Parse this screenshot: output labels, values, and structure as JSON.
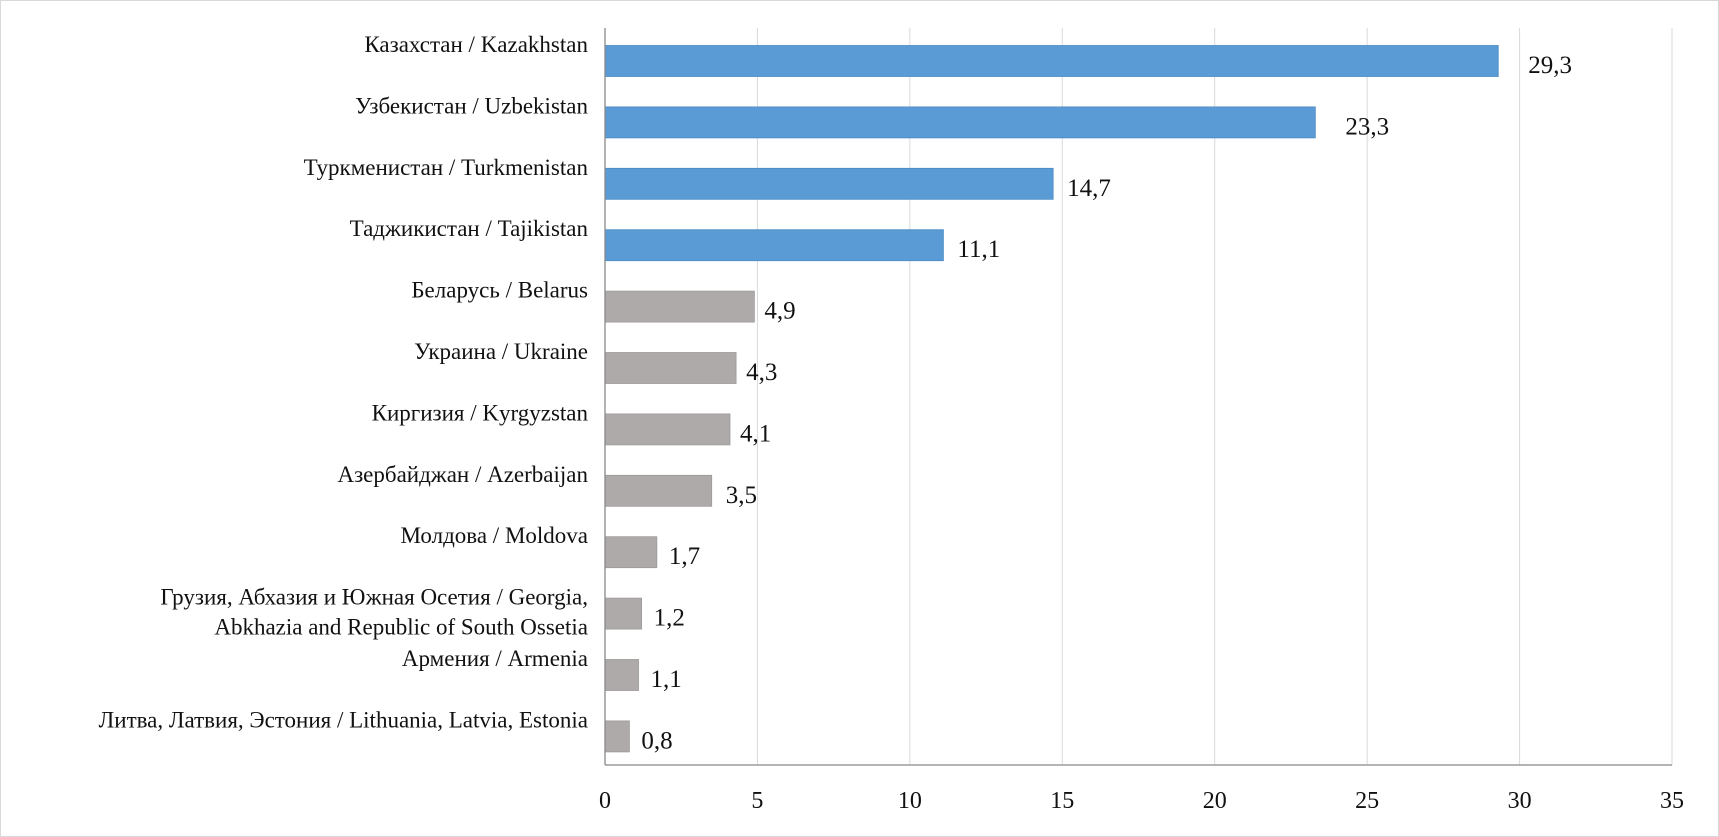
{
  "chart_data": {
    "type": "bar",
    "orientation": "horizontal",
    "categories": [
      [
        "Казахстан / Kazakhstan"
      ],
      [
        "Узбекистан / Uzbekistan"
      ],
      [
        "Туркменистан / Turkmenistan"
      ],
      [
        "Таджикистан / Tajikistan"
      ],
      [
        "Беларусь / Belarus"
      ],
      [
        "Украина / Ukraine"
      ],
      [
        "Киргизия / Kyrgyzstan"
      ],
      [
        "Азербайджан / Azerbaijan"
      ],
      [
        "Молдова / Moldova"
      ],
      [
        "Грузия, Абхазия и Южная Осетия / Georgia,",
        "Abkhazia and Republic of South Ossetia"
      ],
      [
        "Армения / Armenia"
      ],
      [
        "Литва, Латвия, Эстония / Lithuania, Latvia, Estonia"
      ]
    ],
    "values": [
      29.3,
      23.3,
      14.7,
      11.1,
      4.9,
      4.3,
      4.1,
      3.5,
      1.7,
      1.2,
      1.1,
      0.8
    ],
    "value_labels": [
      "29,3",
      "23,3",
      "14,7",
      "11,1",
      "4,9",
      "4,3",
      "4,1",
      "3,5",
      "1,7",
      "1,2",
      "1,1",
      "0,8"
    ],
    "bar_colors": [
      "#5b9bd5",
      "#5b9bd5",
      "#5b9bd5",
      "#5b9bd5",
      "#aeaaaa",
      "#aeaaaa",
      "#aeaaaa",
      "#aeaaaa",
      "#aeaaaa",
      "#aeaaaa",
      "#aeaaaa",
      "#aeaaaa"
    ],
    "xlim": [
      0,
      35
    ],
    "xticks": [
      0,
      5,
      10,
      15,
      20,
      25,
      30,
      35
    ],
    "grid": "vertical",
    "legend": "none",
    "title": "",
    "xlabel": "",
    "ylabel": ""
  }
}
